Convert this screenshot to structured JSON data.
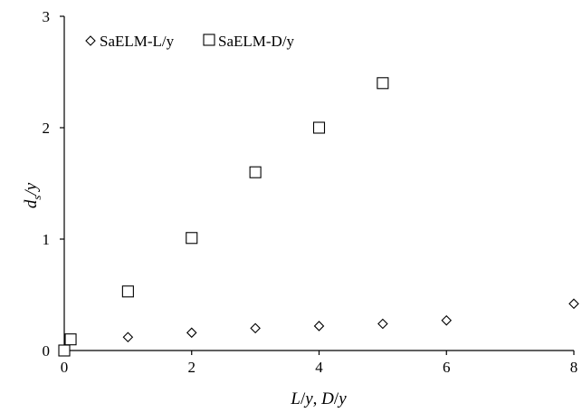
{
  "chart_data": {
    "type": "scatter",
    "title": "",
    "xlabel_parts": [
      "L",
      "/",
      "y",
      ", ",
      "D",
      "/",
      "y"
    ],
    "ylabel_parts": {
      "base": "d",
      "sub": "s",
      "rest": "/y"
    },
    "xlim": [
      0,
      8
    ],
    "ylim": [
      0,
      3
    ],
    "x_ticks": [
      0,
      2,
      4,
      6,
      8
    ],
    "y_ticks": [
      0,
      1,
      2,
      3
    ],
    "grid": false,
    "legend_position": "top-left",
    "series": [
      {
        "name": "SaELM-L/y",
        "marker": "diamond",
        "x": [
          0,
          1,
          2,
          3,
          4,
          5,
          6,
          8
        ],
        "y": [
          0,
          0.12,
          0.16,
          0.2,
          0.22,
          0.24,
          0.27,
          0.42
        ]
      },
      {
        "name": "SaELM-D/y",
        "marker": "square",
        "x": [
          0,
          0.1,
          1,
          2,
          3,
          4,
          5
        ],
        "y": [
          0,
          0.1,
          0.53,
          1.01,
          1.6,
          2.0,
          2.4
        ]
      }
    ]
  }
}
